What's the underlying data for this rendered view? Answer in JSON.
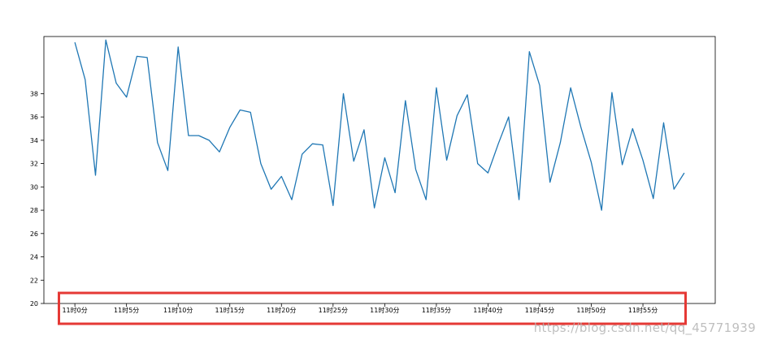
{
  "chart_data": {
    "type": "line",
    "title": "",
    "xlabel": "",
    "ylabel": "",
    "x": [
      0,
      1,
      2,
      3,
      4,
      5,
      6,
      7,
      8,
      9,
      10,
      11,
      12,
      13,
      14,
      15,
      16,
      17,
      18,
      19,
      20,
      21,
      22,
      23,
      24,
      25,
      26,
      27,
      28,
      29,
      30,
      31,
      32,
      33,
      34,
      35,
      36,
      37,
      38,
      39,
      40,
      41,
      42,
      43,
      44,
      45,
      46,
      47,
      48,
      49,
      50,
      51,
      52,
      53,
      54,
      55,
      56,
      57,
      58,
      59
    ],
    "series": [
      {
        "values": [
          42.4,
          39.2,
          31.0,
          42.6,
          38.9,
          37.7,
          41.2,
          41.1,
          33.8,
          31.4,
          42.0,
          34.4,
          34.4,
          34.0,
          33.0,
          35.1,
          36.6,
          36.4,
          32.0,
          29.8,
          30.9,
          28.9,
          32.8,
          33.7,
          33.6,
          28.4,
          38.0,
          32.2,
          34.9,
          28.2,
          32.5,
          29.5,
          37.4,
          31.5,
          28.9,
          38.5,
          32.3,
          36.1,
          37.9,
          32.0,
          31.2,
          33.7,
          36.0,
          28.9,
          41.6,
          38.7,
          30.4,
          33.8,
          38.5,
          35.1,
          32.1,
          28.0,
          38.1,
          31.9,
          35.0,
          32.3,
          29.0,
          35.5,
          29.8,
          31.2
        ]
      }
    ],
    "ylim": [
      20,
      42.9
    ],
    "yticks": [
      20,
      22,
      24,
      26,
      28,
      30,
      32,
      34,
      36,
      38
    ],
    "xlim": [
      -3,
      62
    ],
    "xticks": [
      0,
      5,
      10,
      15,
      20,
      25,
      30,
      35,
      40,
      45,
      50,
      55
    ],
    "xtick_labels": [
      "11时0分",
      "11时5分",
      "11时10分",
      "11时15分",
      "11时20分",
      "11时25分",
      "11时30分",
      "11时35分",
      "11时40分",
      "11时45分",
      "11时50分",
      "11时55分"
    ],
    "grid": false,
    "legend": "none"
  },
  "colors": {
    "line": "#1f77b4",
    "axes": "#000000",
    "highlight_box": "#e53935"
  },
  "watermark": "https://blog.csdn.net/qq_45771939"
}
